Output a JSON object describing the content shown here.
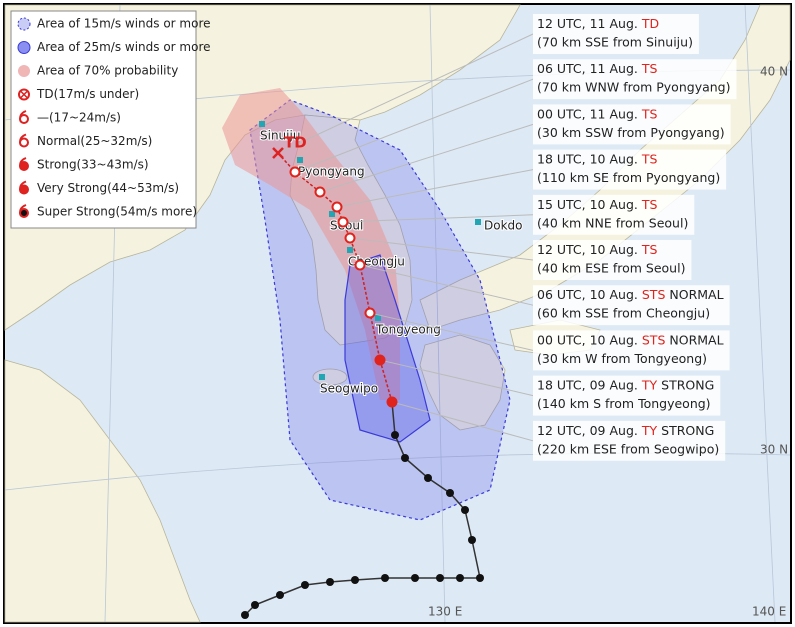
{
  "legend": [
    "Area of 15m/s winds or more",
    "Area of 25m/s winds or more",
    "Area of 70% probability",
    "TD(17m/s under)",
    "—(17~24m/s)",
    "Normal(25~32m/s)",
    "Strong(33~43m/s)",
    "Very Strong(44~53m/s)",
    "Super Strong(54m/s more)"
  ],
  "forecasts": [
    {
      "time": "12 UTC, 11 Aug.",
      "status": "TD",
      "location": "(70 km SSE from Sinuiju)"
    },
    {
      "time": "06 UTC, 11 Aug.",
      "status": "TS",
      "location": "(70 km WNW from Pyongyang)"
    },
    {
      "time": "00 UTC, 11 Aug.",
      "status": "TS",
      "location": "(30 km SSW from Pyongyang)"
    },
    {
      "time": "18 UTC, 10 Aug.",
      "status": "TS",
      "location": "(110 km SE from Pyongyang)"
    },
    {
      "time": "15 UTC, 10 Aug.",
      "status": "TS",
      "location": "(40 km NNE from Seoul)"
    },
    {
      "time": "12 UTC, 10 Aug.",
      "status": "TS",
      "location": "(40 km ESE from Seoul)"
    },
    {
      "time": "06 UTC, 10 Aug.",
      "status": "STS",
      "strength": "NORMAL",
      "location": "(60 km SSE from Cheongju)"
    },
    {
      "time": "00 UTC, 10 Aug.",
      "status": "STS",
      "strength": "NORMAL",
      "location": "(30 km W from Tongyeong)"
    },
    {
      "time": "18 UTC, 09 Aug.",
      "status": "TY",
      "strength": "STRONG",
      "location": "(140 km S from Tongyeong)"
    },
    {
      "time": "12 UTC, 09 Aug.",
      "status": "TY",
      "strength": "STRONG",
      "location": "(220 km ESE from Seogwipo)"
    }
  ],
  "places": [
    "Sinuiju",
    "Pyongyang",
    "Seoul",
    "Cheongju",
    "Tongyeong",
    "Seogwipo",
    "Dokdo"
  ],
  "end_marker": "TD",
  "grid_labels": [
    "40 N",
    "30 N",
    "130 E",
    "140 E"
  ]
}
